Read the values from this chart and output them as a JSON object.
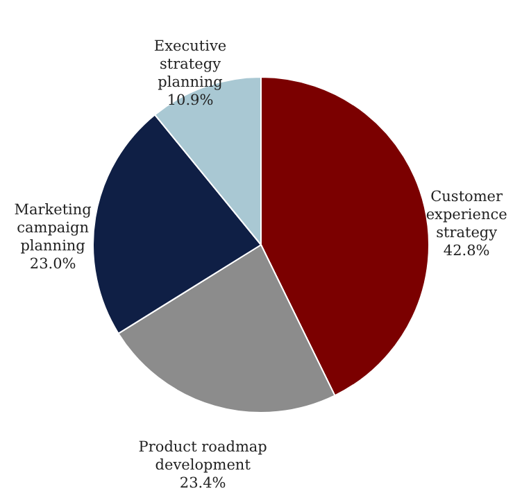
{
  "chart_data": {
    "type": "pie",
    "categories": [
      "Customer experience strategy",
      "Product roadmap development",
      "Marketing campaign planning",
      "Executive strategy planning"
    ],
    "values": [
      42.8,
      23.4,
      23.0,
      10.9
    ],
    "colors": [
      "#7b0000",
      "#8c8c8c",
      "#0f1f45",
      "#a9c8d3"
    ],
    "value_labels": [
      "42.8%",
      "23.4%",
      "23.0%",
      "10.9%"
    ]
  }
}
